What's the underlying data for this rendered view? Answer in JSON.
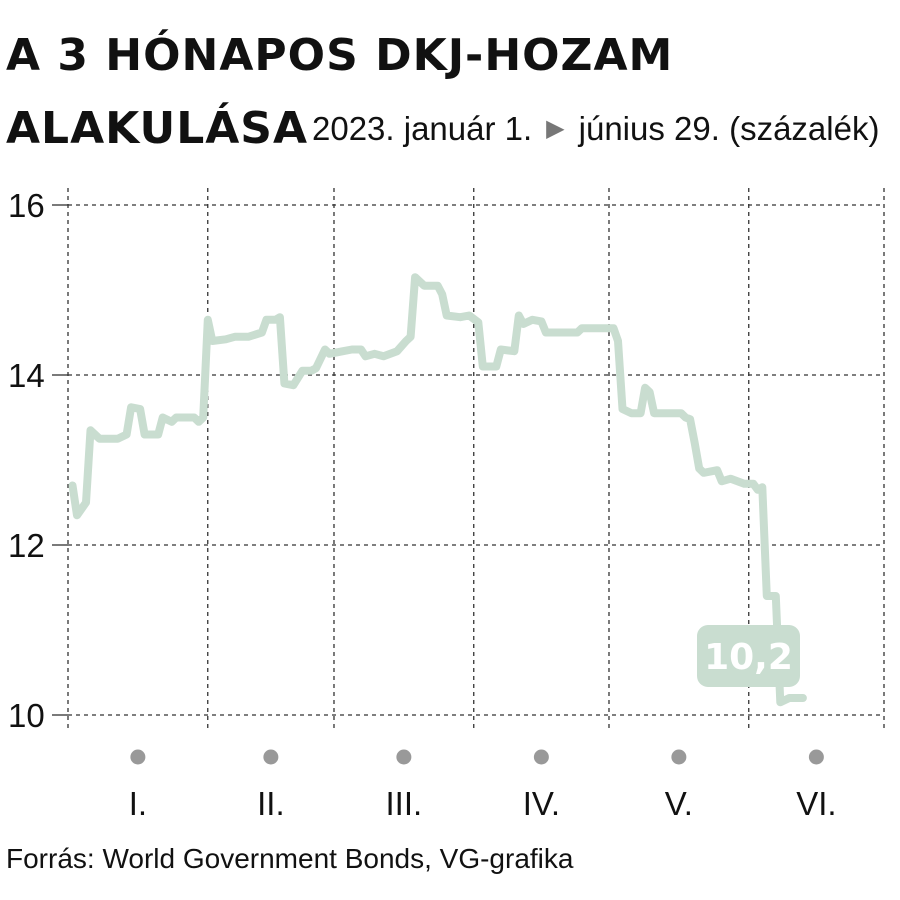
{
  "title_line1": "A 3 HÓNAPOS DKJ-HOZAM",
  "title_line2": "ALAKULÁSA",
  "subtitle_start": "2023. január 1.",
  "subtitle_end": "június 29. (százalék)",
  "source": "Forrás: World Government Bonds, VG-grafika",
  "colors": {
    "line": "#c9ddd0",
    "grid": "#333333",
    "dot": "#999999",
    "label_bg": "#c9ddd0",
    "label_text": "#ffffff"
  },
  "chart_data": {
    "type": "line",
    "ylim": [
      10,
      16
    ],
    "yticks": [
      "10",
      "12",
      "14",
      "16"
    ],
    "months": [
      "I.",
      "II.",
      "III.",
      "IV.",
      "V.",
      "VI."
    ],
    "x_range": [
      "2023-01-01",
      "2023-06-29"
    ],
    "end_label": "10,2",
    "series": [
      {
        "values": [
          [
            "2023-01-02",
            12.7
          ],
          [
            "2023-01-03",
            12.35
          ],
          [
            "2023-01-05",
            12.5
          ],
          [
            "2023-01-06",
            13.35
          ],
          [
            "2023-01-08",
            13.25
          ],
          [
            "2023-01-12",
            13.25
          ],
          [
            "2023-01-14",
            13.3
          ],
          [
            "2023-01-15",
            13.62
          ],
          [
            "2023-01-17",
            13.6
          ],
          [
            "2023-01-18",
            13.3
          ],
          [
            "2023-01-21",
            13.3
          ],
          [
            "2023-01-22",
            13.5
          ],
          [
            "2023-01-24",
            13.45
          ],
          [
            "2023-01-25",
            13.5
          ],
          [
            "2023-01-29",
            13.5
          ],
          [
            "2023-01-30",
            13.45
          ],
          [
            "2023-01-31",
            13.5
          ],
          [
            "2023-02-01",
            14.65
          ],
          [
            "2023-02-02",
            14.4
          ],
          [
            "2023-02-05",
            14.42
          ],
          [
            "2023-02-07",
            14.45
          ],
          [
            "2023-02-10",
            14.45
          ],
          [
            "2023-02-13",
            14.5
          ],
          [
            "2023-02-14",
            14.65
          ],
          [
            "2023-02-16",
            14.65
          ],
          [
            "2023-02-17",
            14.68
          ],
          [
            "2023-02-18",
            13.9
          ],
          [
            "2023-02-20",
            13.88
          ],
          [
            "2023-02-22",
            14.05
          ],
          [
            "2023-02-24",
            14.05
          ],
          [
            "2023-02-25",
            14.08
          ],
          [
            "2023-02-27",
            14.3
          ],
          [
            "2023-02-28",
            14.25
          ],
          [
            "2023-03-03",
            14.28
          ],
          [
            "2023-03-05",
            14.3
          ],
          [
            "2023-03-07",
            14.3
          ],
          [
            "2023-03-08",
            14.22
          ],
          [
            "2023-03-10",
            14.25
          ],
          [
            "2023-03-12",
            14.22
          ],
          [
            "2023-03-15",
            14.28
          ],
          [
            "2023-03-17",
            14.4
          ],
          [
            "2023-03-18",
            14.45
          ],
          [
            "2023-03-19",
            15.15
          ],
          [
            "2023-03-21",
            15.05
          ],
          [
            "2023-03-24",
            15.05
          ],
          [
            "2023-03-25",
            14.95
          ],
          [
            "2023-03-26",
            14.7
          ],
          [
            "2023-03-29",
            14.68
          ],
          [
            "2023-03-31",
            14.7
          ],
          [
            "2023-04-02",
            14.62
          ],
          [
            "2023-04-03",
            14.1
          ],
          [
            "2023-04-06",
            14.1
          ],
          [
            "2023-04-07",
            14.3
          ],
          [
            "2023-04-10",
            14.28
          ],
          [
            "2023-04-11",
            14.7
          ],
          [
            "2023-04-12",
            14.6
          ],
          [
            "2023-04-14",
            14.65
          ],
          [
            "2023-04-16",
            14.63
          ],
          [
            "2023-04-17",
            14.5
          ],
          [
            "2023-04-24",
            14.5
          ],
          [
            "2023-04-25",
            14.55
          ],
          [
            "2023-05-02",
            14.55
          ],
          [
            "2023-05-03",
            14.4
          ],
          [
            "2023-05-04",
            13.6
          ],
          [
            "2023-05-06",
            13.55
          ],
          [
            "2023-05-08",
            13.55
          ],
          [
            "2023-05-09",
            13.85
          ],
          [
            "2023-05-10",
            13.8
          ],
          [
            "2023-05-11",
            13.55
          ],
          [
            "2023-05-17",
            13.55
          ],
          [
            "2023-05-18",
            13.5
          ],
          [
            "2023-05-19",
            13.48
          ],
          [
            "2023-05-20",
            13.2
          ],
          [
            "2023-05-21",
            12.9
          ],
          [
            "2023-05-22",
            12.85
          ],
          [
            "2023-05-25",
            12.88
          ],
          [
            "2023-05-26",
            12.75
          ],
          [
            "2023-05-28",
            12.78
          ],
          [
            "2023-05-31",
            12.72
          ],
          [
            "2023-06-02",
            12.72
          ],
          [
            "2023-06-03",
            12.65
          ],
          [
            "2023-06-04",
            12.68
          ],
          [
            "2023-06-05",
            11.4
          ],
          [
            "2023-06-07",
            11.4
          ],
          [
            "2023-06-08",
            10.15
          ],
          [
            "2023-06-10",
            10.2
          ],
          [
            "2023-06-13",
            10.2
          ]
        ]
      }
    ]
  }
}
